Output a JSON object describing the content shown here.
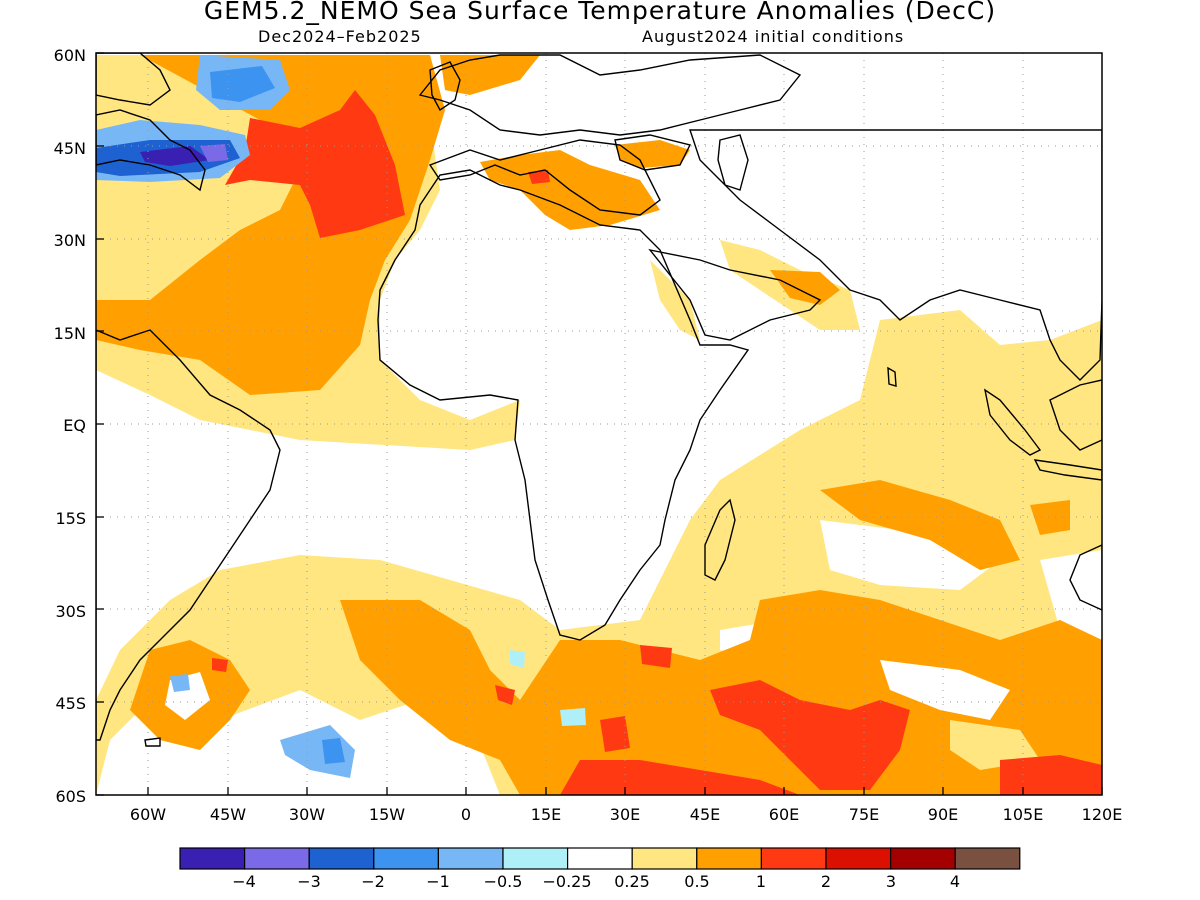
{
  "title": "GEM5.2_NEMO Sea Surface Temperature Anomalies (DecC)",
  "period": "Dec2024–Feb2025",
  "initial_conditions": "August2024 initial conditions",
  "lat_labels": [
    "60N",
    "45N",
    "30N",
    "15N",
    "EQ",
    "15S",
    "30S",
    "45S",
    "60S"
  ],
  "lon_labels": [
    "60W",
    "45W",
    "30W",
    "15W",
    "0",
    "15E",
    "30E",
    "45E",
    "60E",
    "75E",
    "90E",
    "105E",
    "120E"
  ],
  "colorbar": {
    "tick_labels": [
      "−4",
      "−3",
      "−2",
      "−1",
      "−0.5",
      "−0.25",
      "0.25",
      "0.5",
      "1",
      "2",
      "3",
      "4"
    ],
    "colors": [
      "#3a1fb3",
      "#7b6ae8",
      "#1d62d0",
      "#3d93f0",
      "#78b7f5",
      "#aeeff8",
      "#ffffff",
      "#ffe680",
      "#ffa000",
      "#ff3a12",
      "#db1000",
      "#a50000",
      "#7a5040"
    ]
  }
}
